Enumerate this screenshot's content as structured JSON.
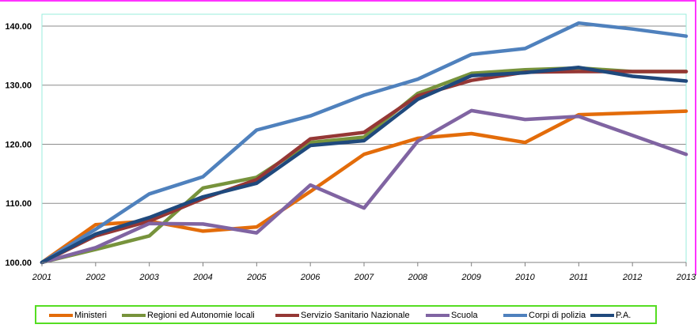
{
  "chart_data": {
    "type": "line",
    "x": [
      "2001",
      "2002",
      "2003",
      "2004",
      "2005",
      "2006",
      "2007",
      "2008",
      "2009",
      "2010",
      "2011",
      "2012",
      "2013"
    ],
    "ylim": [
      100,
      142
    ],
    "yticks": [
      "100.00",
      "110.00",
      "120.00",
      "130.00",
      "140.00"
    ],
    "ytick_values": [
      100,
      110,
      120,
      130,
      140
    ],
    "grid": true,
    "legend_position": "bottom",
    "series": [
      {
        "name": "Ministeri",
        "color": "#e36c0a",
        "values": [
          100.0,
          106.4,
          107.0,
          105.3,
          106.0,
          112.0,
          118.3,
          121.0,
          121.8,
          120.3,
          125.0,
          125.3,
          125.6
        ]
      },
      {
        "name": "Regioni ed Autonomie locali",
        "color": "#77933c",
        "values": [
          100.0,
          102.2,
          104.5,
          112.6,
          114.4,
          120.3,
          121.2,
          128.6,
          132.0,
          132.6,
          132.9,
          132.3,
          132.3
        ]
      },
      {
        "name": "Servizio Sanitario Nazionale",
        "color": "#953735",
        "values": [
          100.0,
          104.5,
          107.0,
          110.8,
          114.0,
          120.9,
          122.0,
          128.2,
          130.8,
          132.2,
          132.3,
          132.3,
          132.3
        ]
      },
      {
        "name": "Scuola",
        "color": "#8064a2",
        "values": [
          100.0,
          102.5,
          106.6,
          106.5,
          105.0,
          113.1,
          109.2,
          120.5,
          125.7,
          124.2,
          124.7,
          121.5,
          118.3
        ]
      },
      {
        "name": "Corpi di polizia",
        "color": "#4f81bd",
        "values": [
          100.0,
          105.6,
          111.6,
          114.5,
          122.4,
          124.8,
          128.3,
          131.0,
          135.2,
          136.2,
          140.5,
          139.5,
          138.3
        ]
      },
      {
        "name": "P.A.",
        "color": "#1f497d",
        "values": [
          100.0,
          104.8,
          107.6,
          111.1,
          113.4,
          119.8,
          120.6,
          127.6,
          131.6,
          132.1,
          133.0,
          131.5,
          130.7
        ]
      }
    ]
  }
}
